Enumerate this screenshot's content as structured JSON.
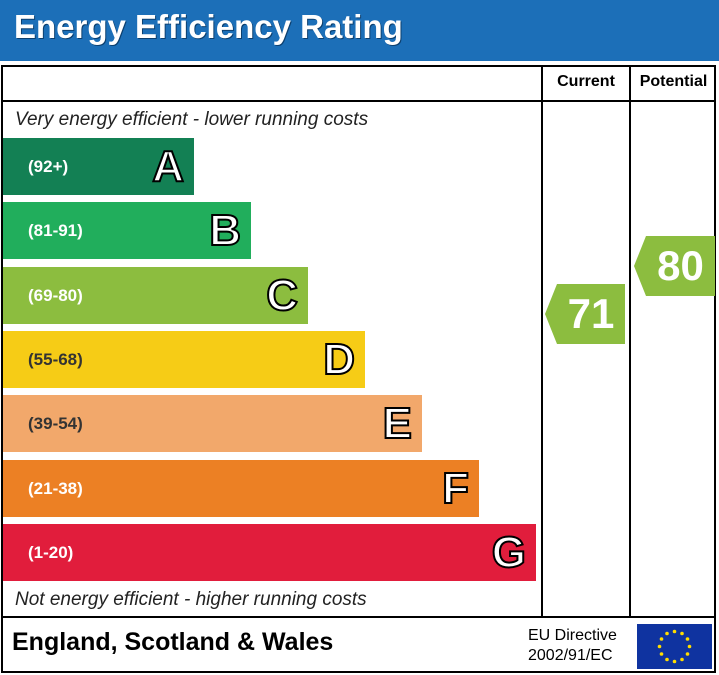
{
  "title": "Energy Efficiency Rating",
  "columns": {
    "current": "Current",
    "potential": "Potential"
  },
  "captions": {
    "top": "Very energy efficient - lower running costs",
    "bottom": "Not energy efficient - higher running costs"
  },
  "bands": [
    {
      "range": "(92+)",
      "letter": "A",
      "color": "#138054"
    },
    {
      "range": "(81-91)",
      "letter": "B",
      "color": "#21ae5c"
    },
    {
      "range": "(69-80)",
      "letter": "C",
      "color": "#8cbd3f"
    },
    {
      "range": "(55-68)",
      "letter": "D",
      "color": "#f6cc16"
    },
    {
      "range": "(39-54)",
      "letter": "E",
      "color": "#f2a86b"
    },
    {
      "range": "(21-38)",
      "letter": "F",
      "color": "#ec8024"
    },
    {
      "range": "(1-20)",
      "letter": "G",
      "color": "#e11d3c"
    }
  ],
  "ratings": {
    "current": {
      "value": "71",
      "color": "#8cbd3f"
    },
    "potential": {
      "value": "80",
      "color": "#8cbd3f"
    }
  },
  "footer": {
    "region": "England, Scotland & Wales",
    "directive_line1": "EU Directive",
    "directive_line2": "2002/91/EC",
    "flag_icon": "eu-flag-icon"
  }
}
